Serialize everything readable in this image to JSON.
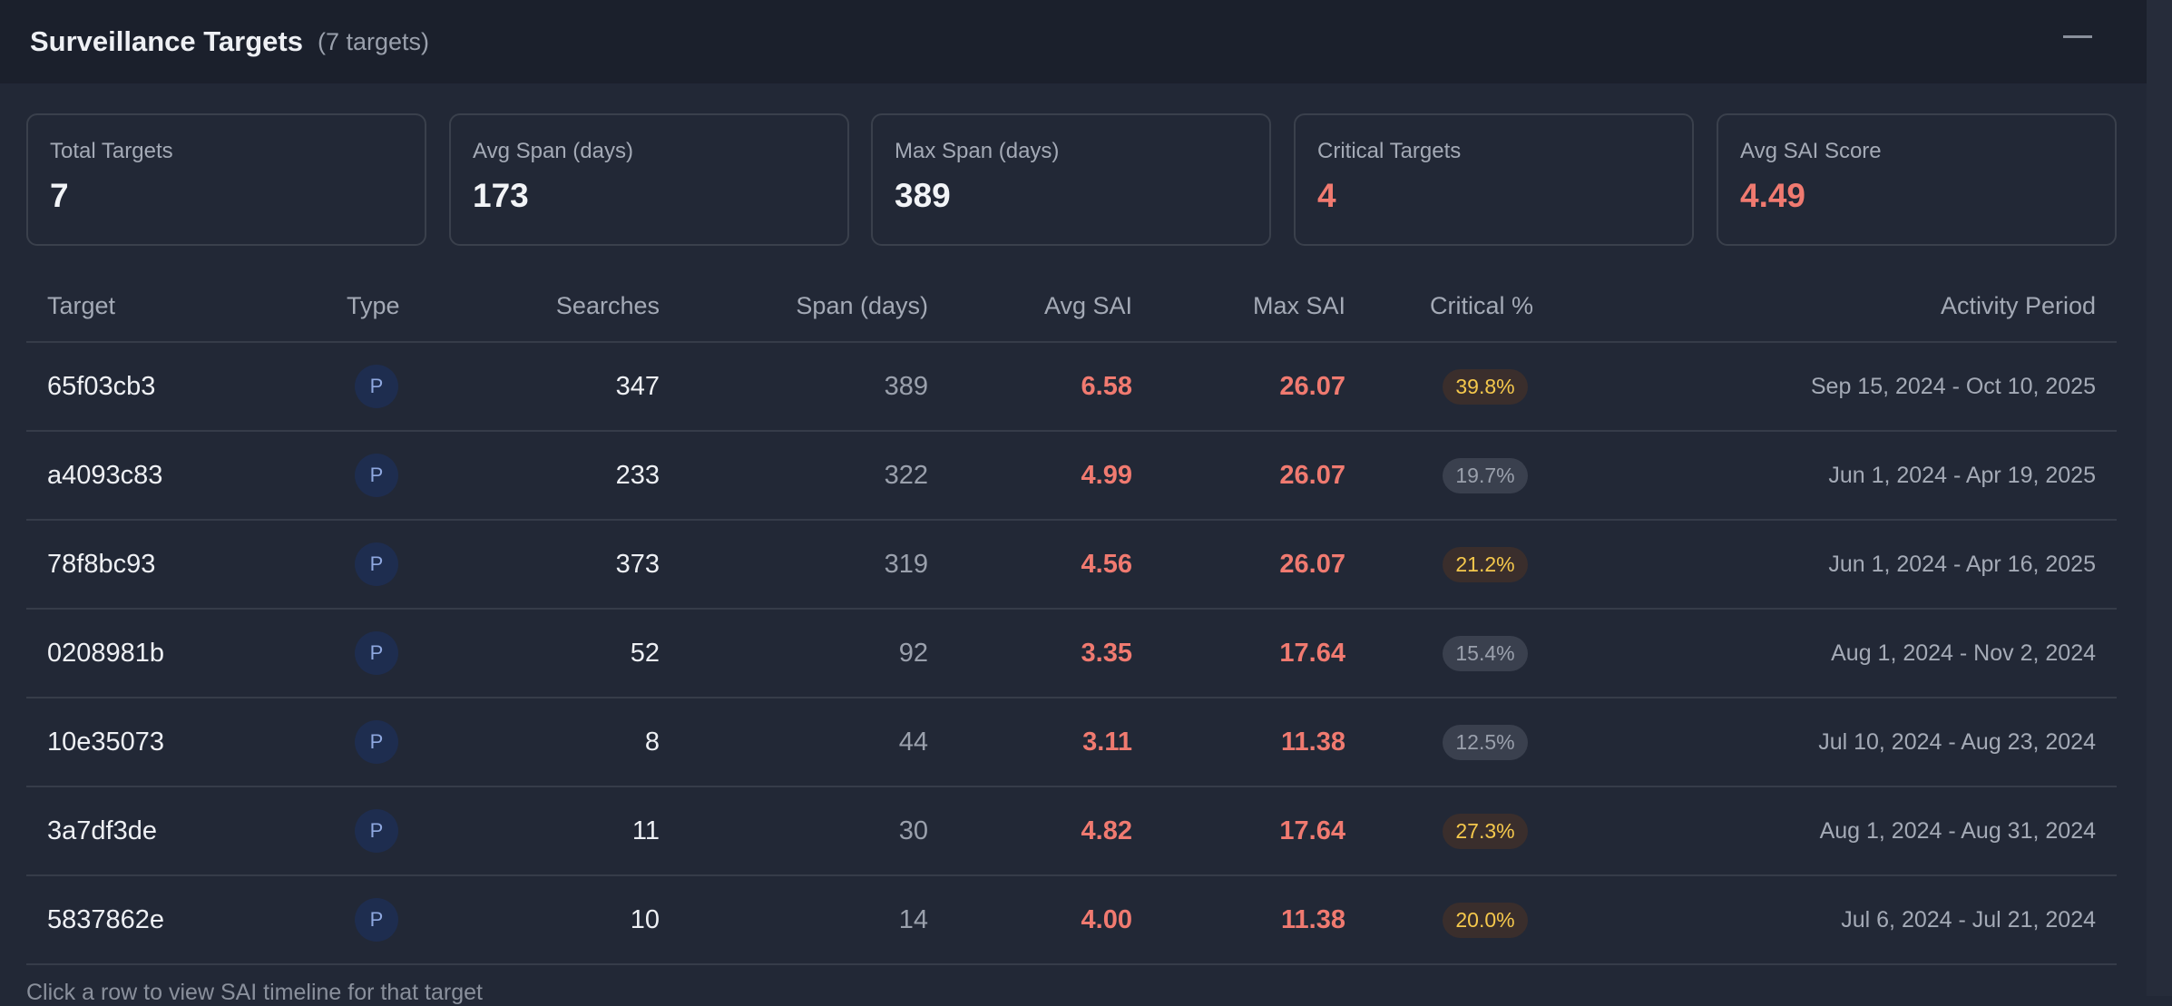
{
  "header": {
    "title": "Surveillance Targets",
    "count": "(7 targets)"
  },
  "stats": [
    {
      "label": "Total Targets",
      "value": "7",
      "tone": "normal"
    },
    {
      "label": "Avg Span (days)",
      "value": "173",
      "tone": "normal"
    },
    {
      "label": "Max Span (days)",
      "value": "389",
      "tone": "normal"
    },
    {
      "label": "Critical Targets",
      "value": "4",
      "tone": "red"
    },
    {
      "label": "Avg SAI Score",
      "value": "4.49",
      "tone": "red"
    }
  ],
  "table": {
    "columns": [
      "Target",
      "Type",
      "Searches",
      "Span (days)",
      "Avg SAI",
      "Max SAI",
      "Critical %",
      "Activity Period"
    ],
    "rows": [
      {
        "target": "65f03cb3",
        "type": "P",
        "searches": "347",
        "span": "389",
        "avg": "6.58",
        "max": "26.07",
        "critical": "39.8%",
        "level": "warn",
        "period": "Sep 15, 2024 - Oct 10, 2025"
      },
      {
        "target": "a4093c83",
        "type": "P",
        "searches": "233",
        "span": "322",
        "avg": "4.99",
        "max": "26.07",
        "critical": "19.7%",
        "level": "norm",
        "period": "Jun 1, 2024 - Apr 19, 2025"
      },
      {
        "target": "78f8bc93",
        "type": "P",
        "searches": "373",
        "span": "319",
        "avg": "4.56",
        "max": "26.07",
        "critical": "21.2%",
        "level": "warn",
        "period": "Jun 1, 2024 - Apr 16, 2025"
      },
      {
        "target": "0208981b",
        "type": "P",
        "searches": "52",
        "span": "92",
        "avg": "3.35",
        "max": "17.64",
        "critical": "15.4%",
        "level": "norm",
        "period": "Aug 1, 2024 - Nov 2, 2024"
      },
      {
        "target": "10e35073",
        "type": "P",
        "searches": "8",
        "span": "44",
        "avg": "3.11",
        "max": "11.38",
        "critical": "12.5%",
        "level": "norm",
        "period": "Jul 10, 2024 - Aug 23, 2024"
      },
      {
        "target": "3a7df3de",
        "type": "P",
        "searches": "11",
        "span": "30",
        "avg": "4.82",
        "max": "17.64",
        "critical": "27.3%",
        "level": "warn",
        "period": "Aug 1, 2024 - Aug 31, 2024"
      },
      {
        "target": "5837862e",
        "type": "P",
        "searches": "10",
        "span": "14",
        "avg": "4.00",
        "max": "11.38",
        "critical": "20.0%",
        "level": "warn",
        "period": "Jul 6, 2024 - Jul 21, 2024"
      }
    ]
  },
  "footer": "Click a row to view SAI timeline for that target"
}
